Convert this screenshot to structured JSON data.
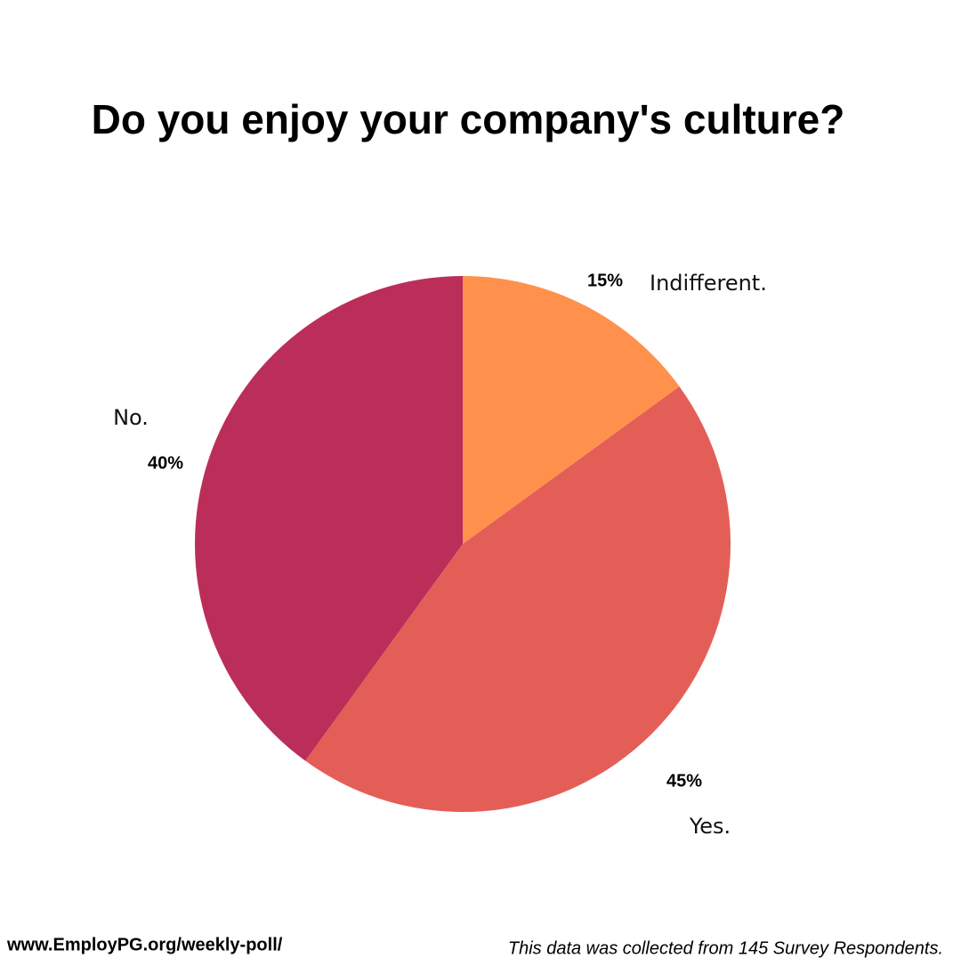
{
  "chart_data": {
    "type": "pie",
    "title": "Do you enjoy your company's culture?",
    "categories": [
      "Indifferent.",
      "Yes.",
      "No."
    ],
    "values": [
      15,
      45,
      40
    ],
    "value_labels": [
      "15%",
      "45%",
      "40%"
    ],
    "colors": [
      "#ff914d",
      "#e45e58",
      "#bb2e5a"
    ]
  },
  "footer": {
    "url": "www.EmployPG.org/weekly-poll/",
    "note": "This data was collected from 145 Survey Respondents."
  }
}
